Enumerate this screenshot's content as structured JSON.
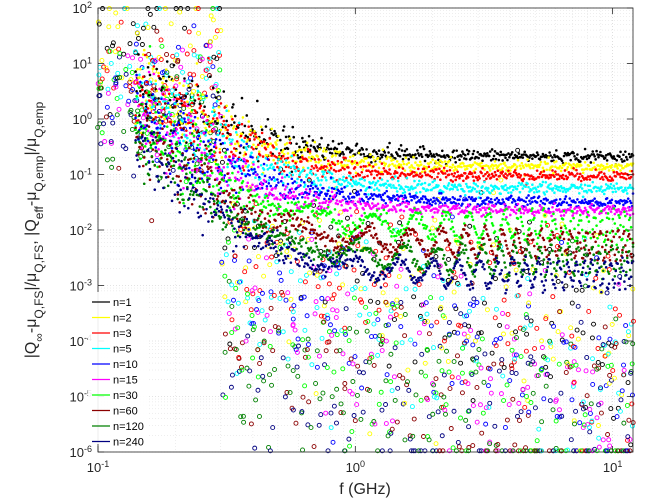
{
  "chart_data": {
    "type": "scatter",
    "title": "",
    "xlabel": "f (GHz)",
    "ylabel_parts": {
      "p1": "|Q",
      "p1_sub": "∞",
      "p2": "-μ",
      "p2_sub": "Q,FS",
      "p3": "|/μ",
      "p3_sub": "Q,FS",
      "p4": ", |Q",
      "p4_sub": "eff",
      "p5": "-μ",
      "p5_sub": "Q,emp",
      "p6": "|/μ",
      "p6_sub": "Q,emp"
    },
    "xscale": "log",
    "yscale": "log",
    "xlim": [
      0.1,
      12
    ],
    "ylim": [
      1e-06,
      100
    ],
    "x_ticks": [
      {
        "v": 0.1,
        "base": "10",
        "exp": "-1"
      },
      {
        "v": 1,
        "base": "10",
        "exp": "0"
      },
      {
        "v": 10,
        "base": "10",
        "exp": "1"
      }
    ],
    "y_ticks": [
      {
        "v": 1e-06,
        "base": "10",
        "exp": "-6"
      },
      {
        "v": 1e-05,
        "base": "10",
        "exp": "-5"
      },
      {
        "v": 0.0001,
        "base": "10",
        "exp": "-4"
      },
      {
        "v": 0.001,
        "base": "10",
        "exp": "-3"
      },
      {
        "v": 0.01,
        "base": "10",
        "exp": "-2"
      },
      {
        "v": 0.1,
        "base": "10",
        "exp": "-1"
      },
      {
        "v": 1,
        "base": "10",
        "exp": "0"
      },
      {
        "v": 10,
        "base": "10",
        "exp": "1"
      },
      {
        "v": 100,
        "base": "10",
        "exp": "2"
      }
    ],
    "grid": true,
    "minor_grid": true,
    "legend_position": "lower-left",
    "series": [
      {
        "name": "n=1",
        "color": "#000000",
        "plateau": 0.21,
        "peak_x": 0.33,
        "peak_y": 0.8
      },
      {
        "name": "n=2",
        "color": "#ffff00",
        "plateau": 0.135,
        "peak_x": 0.32,
        "peak_y": 0.6
      },
      {
        "name": "n=3",
        "color": "#ff0000",
        "plateau": 0.095,
        "peak_x": 0.31,
        "peak_y": 0.5
      },
      {
        "name": "n=5",
        "color": "#00ffff",
        "plateau": 0.055,
        "peak_x": 0.3,
        "peak_y": 0.35
      },
      {
        "name": "n=10",
        "color": "#0000ff",
        "plateau": 0.032,
        "peak_x": 0.28,
        "peak_y": 0.25
      },
      {
        "name": "n=15",
        "color": "#ff00ff",
        "plateau": 0.022,
        "peak_x": 0.27,
        "peak_y": 0.2
      },
      {
        "name": "n=30",
        "color": "#00ff00",
        "plateau": 0.011,
        "peak_x": 0.26,
        "peak_y": 0.15
      },
      {
        "name": "n=60",
        "color": "#8b0000",
        "plateau": 0.0055,
        "peak_x": 0.25,
        "peak_y": 0.1
      },
      {
        "name": "n=120",
        "color": "#008000",
        "plateau": 0.0028,
        "peak_x": 0.24,
        "peak_y": 0.08
      },
      {
        "name": "n=240",
        "color": "#000080",
        "plateau": 0.0016,
        "peak_x": 0.23,
        "peak_y": 0.06
      }
    ]
  }
}
